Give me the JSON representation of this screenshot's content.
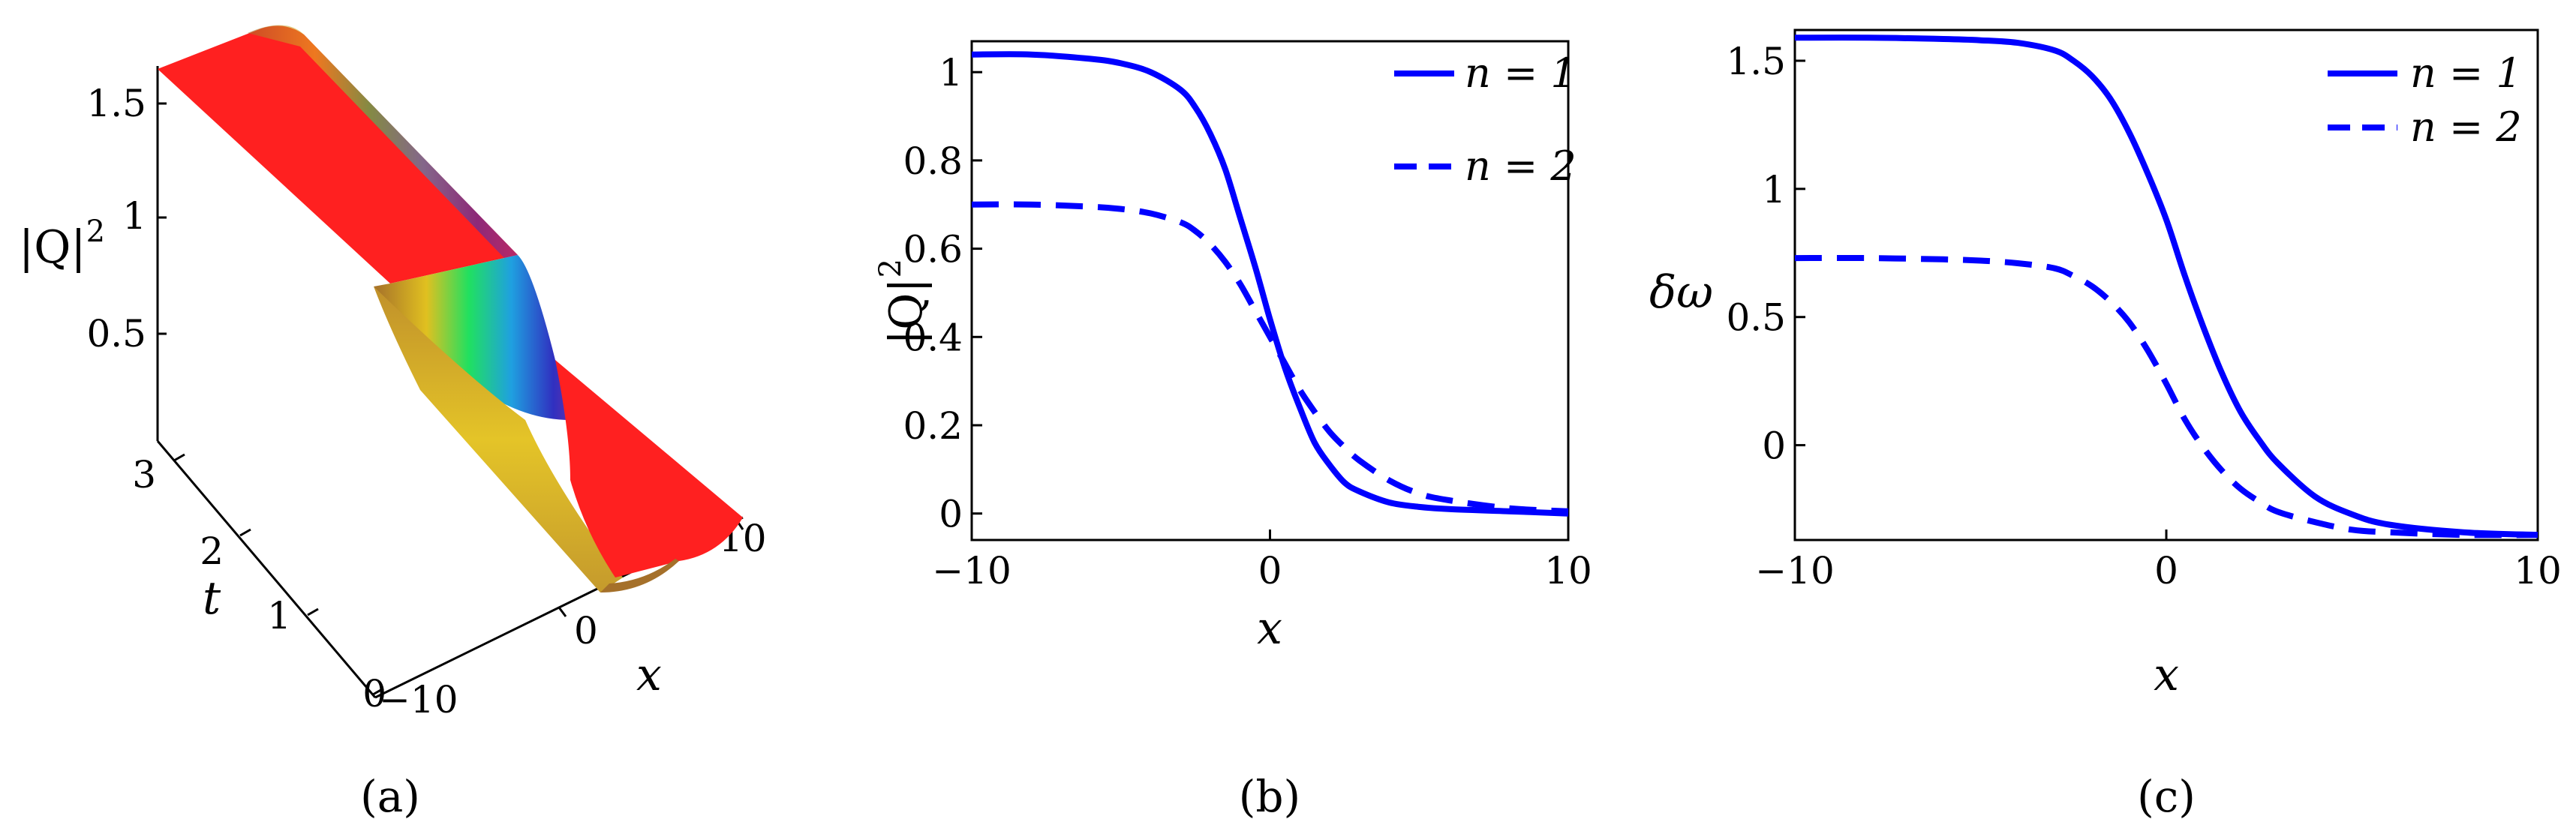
{
  "panels": [
    {
      "id": "a",
      "caption": "(a)"
    },
    {
      "id": "b",
      "caption": "(b)"
    },
    {
      "id": "c",
      "caption": "(c)"
    }
  ],
  "chart_data": [
    {
      "type": "surface",
      "panel": "a",
      "zlabel": "|Q|",
      "zlabel_sup": "2",
      "tlabel": "t",
      "xlabel": "x",
      "z_ticks": [
        "0.5",
        "1",
        "1.5"
      ],
      "t_ticks": [
        "0",
        "1",
        "2",
        "3"
      ],
      "x_ticks": [
        "−10",
        "0",
        "10"
      ],
      "xlim": [
        -10,
        10
      ],
      "tlim": [
        0,
        3
      ],
      "zlim": [
        0,
        1.7
      ],
      "colors": [
        "#ff2020",
        "#a5702a",
        "#e0c020",
        "#20e060",
        "#1fa0e0",
        "#3030c0",
        "#8030a0"
      ]
    },
    {
      "type": "line",
      "panel": "b",
      "xlabel": "x",
      "ylabel": "|Q|",
      "ylabel_sup": "2",
      "xlim": [
        -10,
        10
      ],
      "ylim": [
        -0.06,
        1.07
      ],
      "x_ticks": [
        -10,
        0,
        10
      ],
      "x_tick_labels": [
        "−10",
        "0",
        "10"
      ],
      "y_ticks": [
        0,
        0.2,
        0.4,
        0.6,
        0.8,
        1
      ],
      "y_tick_labels": [
        "0",
        "0.2",
        "0.4",
        "0.6",
        "0.8",
        "1"
      ],
      "legend_position": "top-right",
      "series": [
        {
          "name": "n = 1",
          "style": "solid",
          "color": "#0000ff",
          "x": [
            -10,
            -8,
            -6,
            -5,
            -4,
            -3,
            -2.5,
            -2,
            -1.5,
            -1,
            -0.5,
            0,
            0.5,
            1,
            1.5,
            2,
            2.5,
            3,
            4,
            5,
            6,
            8,
            10
          ],
          "y": [
            1.04,
            1.04,
            1.03,
            1.02,
            1.0,
            0.96,
            0.92,
            0.86,
            0.78,
            0.67,
            0.56,
            0.44,
            0.33,
            0.24,
            0.16,
            0.11,
            0.07,
            0.05,
            0.025,
            0.015,
            0.01,
            0.005,
            0.0
          ]
        },
        {
          "name": "n = 2",
          "style": "dashed",
          "color": "#0000ff",
          "x": [
            -10,
            -8,
            -6,
            -5,
            -4,
            -3,
            -2.5,
            -2,
            -1.5,
            -1,
            -0.5,
            0,
            0.5,
            1,
            1.5,
            2,
            2.5,
            3,
            4,
            5,
            6,
            8,
            10
          ],
          "y": [
            0.7,
            0.7,
            0.695,
            0.69,
            0.68,
            0.66,
            0.64,
            0.61,
            0.57,
            0.52,
            0.46,
            0.4,
            0.34,
            0.28,
            0.23,
            0.185,
            0.15,
            0.12,
            0.075,
            0.045,
            0.03,
            0.012,
            0.005
          ]
        }
      ]
    },
    {
      "type": "line",
      "panel": "c",
      "xlabel": "x",
      "ylabel": "δω",
      "xlim": [
        -10,
        10
      ],
      "ylim": [
        -0.37,
        1.62
      ],
      "x_ticks": [
        -10,
        0,
        10
      ],
      "x_tick_labels": [
        "−10",
        "0",
        "10"
      ],
      "y_ticks": [
        0,
        0.5,
        1,
        1.5
      ],
      "y_tick_labels": [
        "0",
        "0.5",
        "1",
        "1.5"
      ],
      "legend_position": "top-right",
      "series": [
        {
          "name": "n = 1",
          "style": "solid",
          "color": "#0000ff",
          "x": [
            -10,
            -8,
            -6,
            -5,
            -4,
            -3,
            -2.5,
            -2,
            -1.5,
            -1,
            -0.5,
            0,
            0.5,
            1,
            1.5,
            2,
            2.5,
            3,
            4,
            5,
            6,
            8,
            10
          ],
          "y": [
            1.59,
            1.59,
            1.585,
            1.58,
            1.57,
            1.54,
            1.5,
            1.44,
            1.35,
            1.22,
            1.06,
            0.88,
            0.66,
            0.46,
            0.28,
            0.13,
            0.02,
            -0.07,
            -0.2,
            -0.27,
            -0.31,
            -0.34,
            -0.35
          ]
        },
        {
          "name": "n = 2",
          "style": "dashed",
          "color": "#0000ff",
          "x": [
            -10,
            -8,
            -6,
            -5,
            -4,
            -3,
            -2.5,
            -2,
            -1.5,
            -1,
            -0.5,
            0,
            0.5,
            1,
            1.5,
            2,
            2.5,
            3,
            4,
            5,
            6,
            8,
            10
          ],
          "y": [
            0.73,
            0.73,
            0.725,
            0.72,
            0.71,
            0.69,
            0.66,
            0.62,
            0.56,
            0.48,
            0.37,
            0.24,
            0.1,
            -0.01,
            -0.1,
            -0.17,
            -0.22,
            -0.26,
            -0.3,
            -0.33,
            -0.34,
            -0.35,
            -0.35
          ]
        }
      ]
    }
  ]
}
